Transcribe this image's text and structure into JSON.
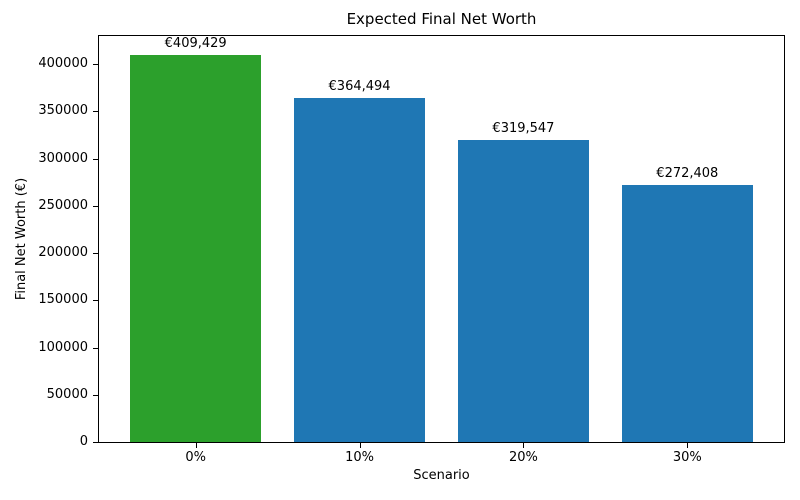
{
  "chart_data": {
    "type": "bar",
    "title": "Expected Final Net Worth",
    "xlabel": "Scenario",
    "ylabel": "Final Net Worth (€)",
    "categories": [
      "0%",
      "10%",
      "20%",
      "30%"
    ],
    "values": [
      409429,
      364494,
      319547,
      272408
    ],
    "bar_labels": [
      "€409,429",
      "€364,494",
      "€319,547",
      "€272,408"
    ],
    "bar_colors": [
      "#2ca02c",
      "#1f77b4",
      "#1f77b4",
      "#1f77b4"
    ],
    "ylim": [
      0,
      429900
    ],
    "yticks": [
      0,
      50000,
      100000,
      150000,
      200000,
      250000,
      300000,
      350000,
      400000
    ],
    "grid": false,
    "legend_position": "none"
  }
}
